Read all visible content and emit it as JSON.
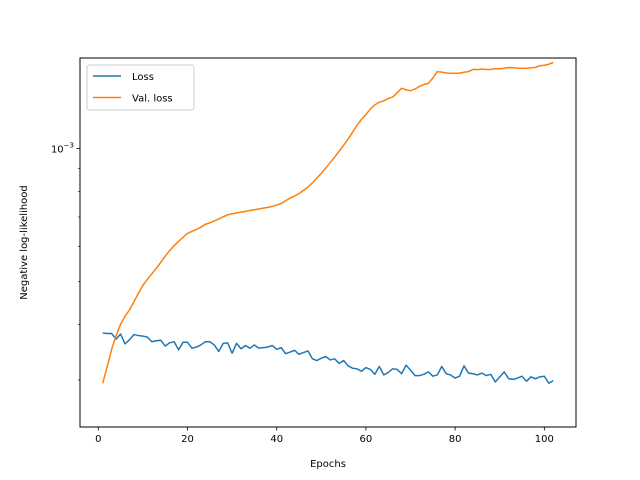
{
  "chart_data": {
    "type": "line",
    "title": "",
    "xlabel": "Epochs",
    "ylabel": "Negative log-likelihood",
    "xlim": [
      -4.1,
      107.1
    ],
    "ylim": [
      0.000235,
      0.0016
    ],
    "yscale": "log",
    "xticks": [
      0,
      20,
      40,
      60,
      80,
      100
    ],
    "xtick_labels": [
      "0",
      "20",
      "40",
      "60",
      "80",
      "100"
    ],
    "yticks": [
      0.001
    ],
    "ytick_labels": [
      "10",
      "−3"
    ],
    "grid": false,
    "legend_position": "top-left",
    "x": [
      1,
      2,
      3,
      4,
      5,
      6,
      7,
      8,
      9,
      10,
      11,
      12,
      13,
      14,
      15,
      16,
      17,
      18,
      19,
      20,
      21,
      22,
      23,
      24,
      25,
      26,
      27,
      28,
      29,
      30,
      31,
      32,
      33,
      34,
      35,
      36,
      37,
      38,
      39,
      40,
      41,
      42,
      43,
      44,
      45,
      46,
      47,
      48,
      49,
      50,
      51,
      52,
      53,
      54,
      55,
      56,
      57,
      58,
      59,
      60,
      61,
      62,
      63,
      64,
      65,
      66,
      67,
      68,
      69,
      70,
      71,
      72,
      73,
      74,
      75,
      76,
      77,
      78,
      79,
      80,
      81,
      82,
      83,
      84,
      85,
      86,
      87,
      88,
      89,
      90,
      91,
      92,
      93,
      94,
      95,
      96,
      97,
      98,
      99,
      100,
      101,
      102
    ],
    "series": [
      {
        "name": "Loss",
        "color": "#1f77b4",
        "values": [
          0.000383,
          0.000382,
          0.000382,
          0.000371,
          0.000381,
          0.000362,
          0.00037,
          0.00038,
          0.000378,
          0.000377,
          0.000375,
          0.000366,
          0.000368,
          0.000369,
          0.000358,
          0.000364,
          0.000366,
          0.000351,
          0.000365,
          0.000365,
          0.000354,
          0.000356,
          0.00036,
          0.000366,
          0.000366,
          0.00036,
          0.000348,
          0.000363,
          0.000364,
          0.000345,
          0.000363,
          0.000353,
          0.000359,
          0.000354,
          0.00036,
          0.000354,
          0.000355,
          0.000356,
          0.000359,
          0.000352,
          0.000355,
          0.000344,
          0.000347,
          0.00035,
          0.000343,
          0.000346,
          0.000349,
          0.000335,
          0.000332,
          0.000336,
          0.000339,
          0.000333,
          0.000335,
          0.000327,
          0.000332,
          0.000323,
          0.000319,
          0.000318,
          0.000314,
          0.00032,
          0.000317,
          0.000309,
          0.000322,
          0.000308,
          0.000312,
          0.000318,
          0.000317,
          0.00031,
          0.000324,
          0.000316,
          0.000307,
          0.000307,
          0.000309,
          0.000313,
          0.000306,
          0.000308,
          0.000322,
          0.00031,
          0.000308,
          0.000303,
          0.000306,
          0.000323,
          0.000311,
          0.00031,
          0.000308,
          0.000311,
          0.000307,
          0.000309,
          0.000297,
          0.000305,
          0.000313,
          0.000302,
          0.000301,
          0.000303,
          0.000306,
          0.000298,
          0.000305,
          0.000302,
          0.000305,
          0.000306,
          0.000295,
          0.000299
        ]
      },
      {
        "name": "Val. loss",
        "color": "#ff7f0e",
        "values": [
          0.000295,
          0.000322,
          0.000352,
          0.000378,
          0.000401,
          0.000418,
          0.000432,
          0.000451,
          0.000471,
          0.000491,
          0.000506,
          0.000521,
          0.000536,
          0.000553,
          0.000571,
          0.000588,
          0.000603,
          0.000617,
          0.00063,
          0.000643,
          0.00065,
          0.000656,
          0.000664,
          0.000674,
          0.000679,
          0.000686,
          0.000693,
          0.000701,
          0.000708,
          0.000712,
          0.000715,
          0.000718,
          0.000721,
          0.000724,
          0.000727,
          0.00073,
          0.000733,
          0.000736,
          0.00074,
          0.000745,
          0.000751,
          0.000762,
          0.000772,
          0.000781,
          0.000791,
          0.000804,
          0.000818,
          0.000836,
          0.000857,
          0.000879,
          0.000903,
          0.000929,
          0.000956,
          0.000986,
          0.001016,
          0.001049,
          0.001088,
          0.001127,
          0.001163,
          0.001193,
          0.001227,
          0.001254,
          0.001271,
          0.001281,
          0.001296,
          0.001306,
          0.001335,
          0.001367,
          0.001356,
          0.00135,
          0.001362,
          0.00138,
          0.001394,
          0.001402,
          0.001441,
          0.001491,
          0.001487,
          0.00148,
          0.001477,
          0.001478,
          0.001479,
          0.001486,
          0.001491,
          0.001508,
          0.001506,
          0.001511,
          0.001507,
          0.001507,
          0.001514,
          0.001513,
          0.001517,
          0.001523,
          0.001522,
          0.001518,
          0.001517,
          0.001516,
          0.00152,
          0.001524,
          0.001537,
          0.001541,
          0.001549,
          0.001563
        ]
      }
    ]
  }
}
